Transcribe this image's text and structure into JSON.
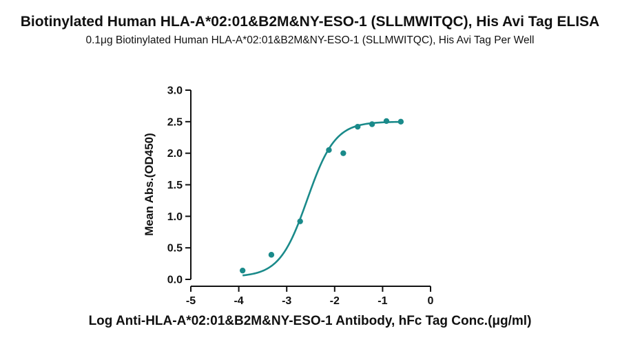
{
  "chart_data": {
    "type": "scatter",
    "title": "Biotinylated Human HLA-A*02:01&B2M&NY-ESO-1 (SLLMWITQC), His Avi Tag ELISA",
    "subtitle": "0.1μg Biotinylated Human HLA-A*02:01&B2M&NY-ESO-1 (SLLMWITQC), His Avi Tag Per Well",
    "xlabel": "Log Anti-HLA-A*02:01&B2M&NY-ESO-1 Antibody, hFc Tag Conc.(μg/ml)",
    "ylabel": "Mean Abs.(OD450)",
    "xlim": [
      -5,
      0
    ],
    "ylim": [
      0,
      3.0
    ],
    "x_ticks": [
      "-5",
      "-4",
      "-3",
      "-2",
      "-1",
      "0"
    ],
    "y_ticks": [
      "0.0",
      "0.5",
      "1.0",
      "1.5",
      "2.0",
      "2.5",
      "3.0"
    ],
    "grid": false,
    "color": "#1a8a8a",
    "points": [
      {
        "x": -3.92,
        "y": 0.14
      },
      {
        "x": -3.32,
        "y": 0.39
      },
      {
        "x": -2.72,
        "y": 0.92
      },
      {
        "x": -2.12,
        "y": 2.05
      },
      {
        "x": -1.82,
        "y": 2.0
      },
      {
        "x": -1.52,
        "y": 2.42
      },
      {
        "x": -1.22,
        "y": 2.46
      },
      {
        "x": -0.92,
        "y": 2.51
      },
      {
        "x": -0.62,
        "y": 2.5
      }
    ],
    "fit_curve": {
      "model": "4PL",
      "bottom": 0.04,
      "top": 2.5,
      "logEC50": -2.57,
      "hill": 1.5,
      "x_range": [
        -3.92,
        -0.62
      ]
    }
  }
}
